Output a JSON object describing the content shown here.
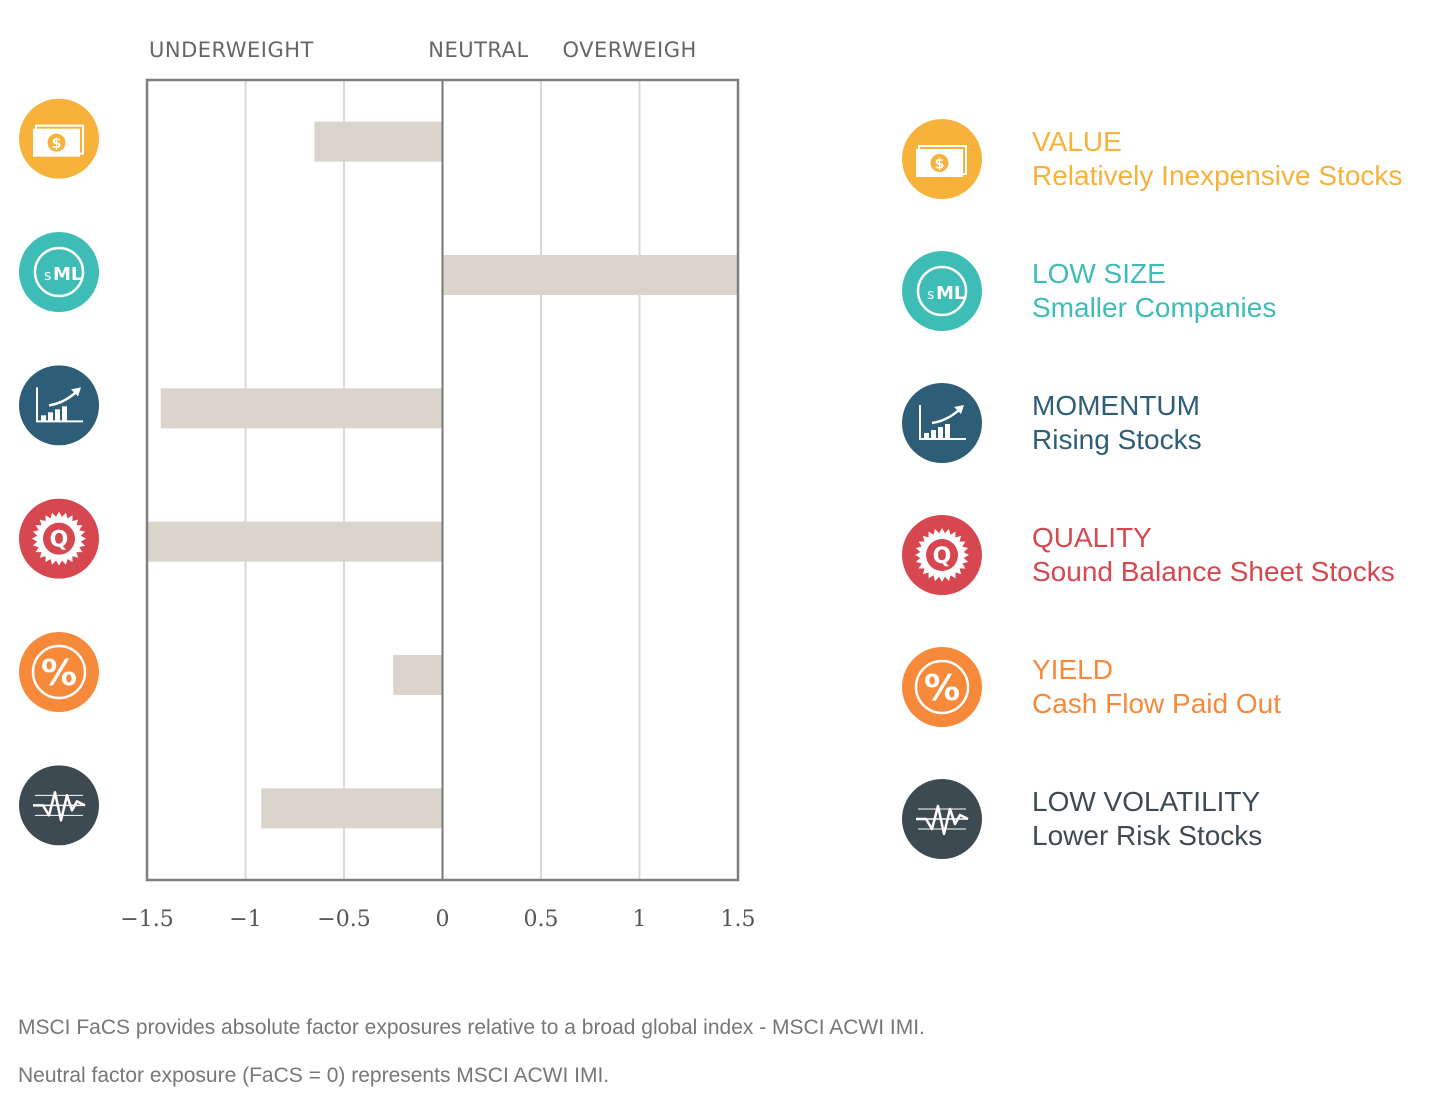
{
  "chart_data": {
    "type": "bar",
    "orientation": "horizontal",
    "categories": [
      "VALUE",
      "LOW SIZE",
      "MOMENTUM",
      "QUALITY",
      "YIELD",
      "LOW VOLATILITY"
    ],
    "values": [
      -0.65,
      1.5,
      -1.43,
      -1.5,
      -0.25,
      -0.92
    ],
    "xlim": [
      -1.5,
      1.5
    ],
    "x_ticks": [
      -1.5,
      -1,
      -0.5,
      0,
      0.5,
      1,
      1.5
    ],
    "x_tick_labels": [
      "−1.5",
      "−1",
      "−0.5",
      "0",
      "0.5",
      "1",
      "1.5"
    ],
    "zone_labels": [
      "UNDERWEIGHT",
      "NEUTRAL",
      "OVERWEIGH"
    ],
    "grid": true,
    "bar_color": "#d9d4cc"
  },
  "factors": [
    {
      "icon": "money-icon",
      "name": "VALUE",
      "description": "Relatively Inexpensive Stocks",
      "color": "#f7b23b"
    },
    {
      "icon": "size-icon",
      "name": "LOW SIZE",
      "description": "Smaller Companies",
      "color": "#3dbdb6"
    },
    {
      "icon": "trend-icon",
      "name": "MOMENTUM",
      "description": "Rising Stocks",
      "color": "#2e5d78"
    },
    {
      "icon": "quality-seal-icon",
      "name": "QUALITY",
      "description": "Sound Balance Sheet Stocks",
      "color": "#d6474f"
    },
    {
      "icon": "percent-icon",
      "name": "YIELD",
      "description": "Cash Flow Paid Out",
      "color": "#f7893a"
    },
    {
      "icon": "volatility-icon",
      "name": "LOW VOLATILITY",
      "description": "Lower Risk Stocks",
      "color": "#3e4a52"
    }
  ],
  "footnotes": [
    "MSCI FaCS provides absolute factor exposures relative to a broad global index - MSCI ACWI IMI.",
    "Neutral factor exposure (FaCS = 0) represents MSCI ACWI IMI."
  ]
}
